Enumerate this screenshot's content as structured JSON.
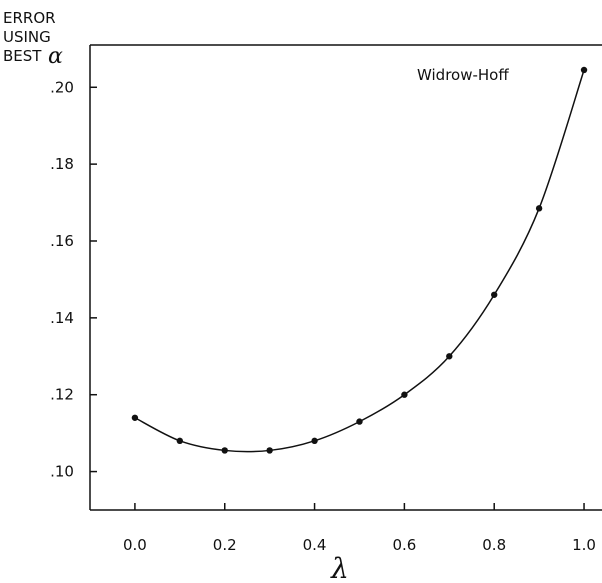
{
  "chart_data": {
    "type": "line",
    "ylabel_lines": [
      "ERROR",
      "USING",
      "BEST"
    ],
    "ylabel_symbol": "α",
    "xlabel": "λ",
    "annotation": "Widrow-Hoff",
    "xlim": [
      -0.1,
      1.04
    ],
    "ylim": [
      0.09,
      0.211
    ],
    "x_ticks": [
      0.0,
      0.2,
      0.4,
      0.6,
      0.8,
      1.0
    ],
    "x_tick_labels": [
      "0.0",
      "0.2",
      "0.4",
      "0.6",
      "0.8",
      "1.0"
    ],
    "y_ticks": [
      0.1,
      0.12,
      0.14,
      0.16,
      0.18,
      0.2
    ],
    "y_tick_labels": [
      ".10",
      ".12",
      ".14",
      ".16",
      ".18",
      ".20"
    ],
    "grid": false,
    "series": [
      {
        "x": [
          0.0,
          0.1,
          0.2,
          0.3,
          0.4,
          0.5,
          0.6,
          0.7,
          0.8,
          0.9,
          1.0
        ],
        "y": [
          0.114,
          0.108,
          0.1055,
          0.1055,
          0.108,
          0.113,
          0.12,
          0.13,
          0.146,
          0.1685,
          0.2045
        ]
      }
    ]
  }
}
